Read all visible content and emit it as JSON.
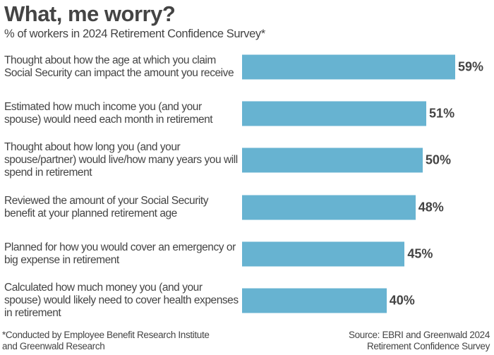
{
  "chart_data": {
    "type": "bar",
    "orientation": "horizontal",
    "title": "What, me worry?",
    "subtitle": "% of workers in 2024 Retirement Confidence Survey*",
    "categories": [
      "Thought about how the age at which you claim Social Security can impact the amount you receive",
      "Estimated how much income you (and your spouse) would need each month in retirement",
      "Thought about how long you (and your spouse/partner) would live/how many years you will spend in retirement",
      "Reviewed the amount of your Social Security benefit at your planned retirement age",
      "Planned for how you would cover an emergency or big expense in retirement",
      "Calculated how much money you (and your spouse) would likely need to cover health expenses in retirement"
    ],
    "values": [
      59,
      51,
      50,
      48,
      45,
      40
    ],
    "data_labels": [
      "59%",
      "51%",
      "50%",
      "48%",
      "45%",
      "40%"
    ],
    "bar_color": "#67b3d1",
    "grid": false,
    "footnote": "*Conducted by Employee Benefit Research Institute and Greenwald Research",
    "source": "Source: EBRI and Greenwald 2024 Retirement Confidence Survey"
  }
}
